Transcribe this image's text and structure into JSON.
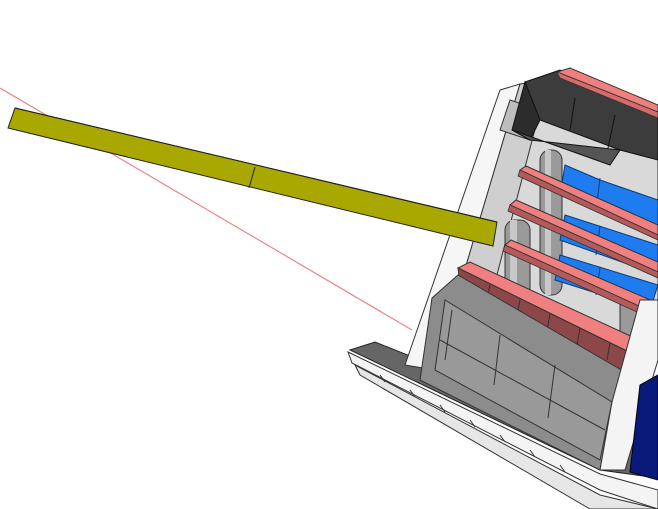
{
  "viewport": {
    "background": "#ffffff"
  },
  "scene": {
    "objects": [
      {
        "name": "guide-line",
        "color": "#e8868a"
      },
      {
        "name": "boom-arm",
        "color": "#a8a800"
      },
      {
        "name": "base-platform",
        "color": "#f2f2f2"
      },
      {
        "name": "outer-frame",
        "color": "#cfcfcf"
      },
      {
        "name": "top-cap-block",
        "color": "#4a4a4a"
      },
      {
        "name": "support-pillars",
        "color": "#9a9a9a"
      },
      {
        "name": "pink-plates",
        "color": "#f08080"
      },
      {
        "name": "blue-panels",
        "color": "#1e7bf0"
      },
      {
        "name": "lower-housing",
        "color": "#8c8c8c"
      },
      {
        "name": "dark-blue-panel",
        "color": "#0a1a7a"
      }
    ]
  }
}
